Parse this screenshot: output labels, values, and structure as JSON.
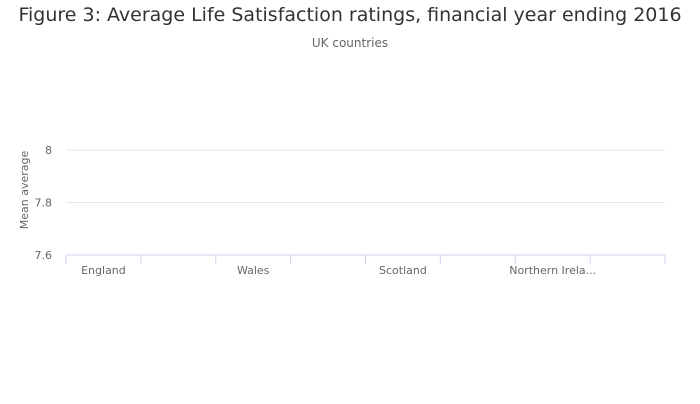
{
  "chart_data": {
    "type": "bar",
    "title": "Figure 3: Average Life Satisfaction ratings, financial year ending 2016",
    "subtitle": "UK countries",
    "xlabel": "",
    "ylabel": "Mean average",
    "categories": [
      "England",
      "Wales",
      "Scotland",
      "Northern Irela..."
    ],
    "yticks": [
      "7.6",
      "7.8",
      "8"
    ],
    "ytick_values": [
      7.6,
      7.8,
      8
    ],
    "ylim": [
      7.6,
      8.0
    ],
    "values": [
      null,
      null,
      null,
      null
    ],
    "grid": true,
    "legend": "none"
  }
}
